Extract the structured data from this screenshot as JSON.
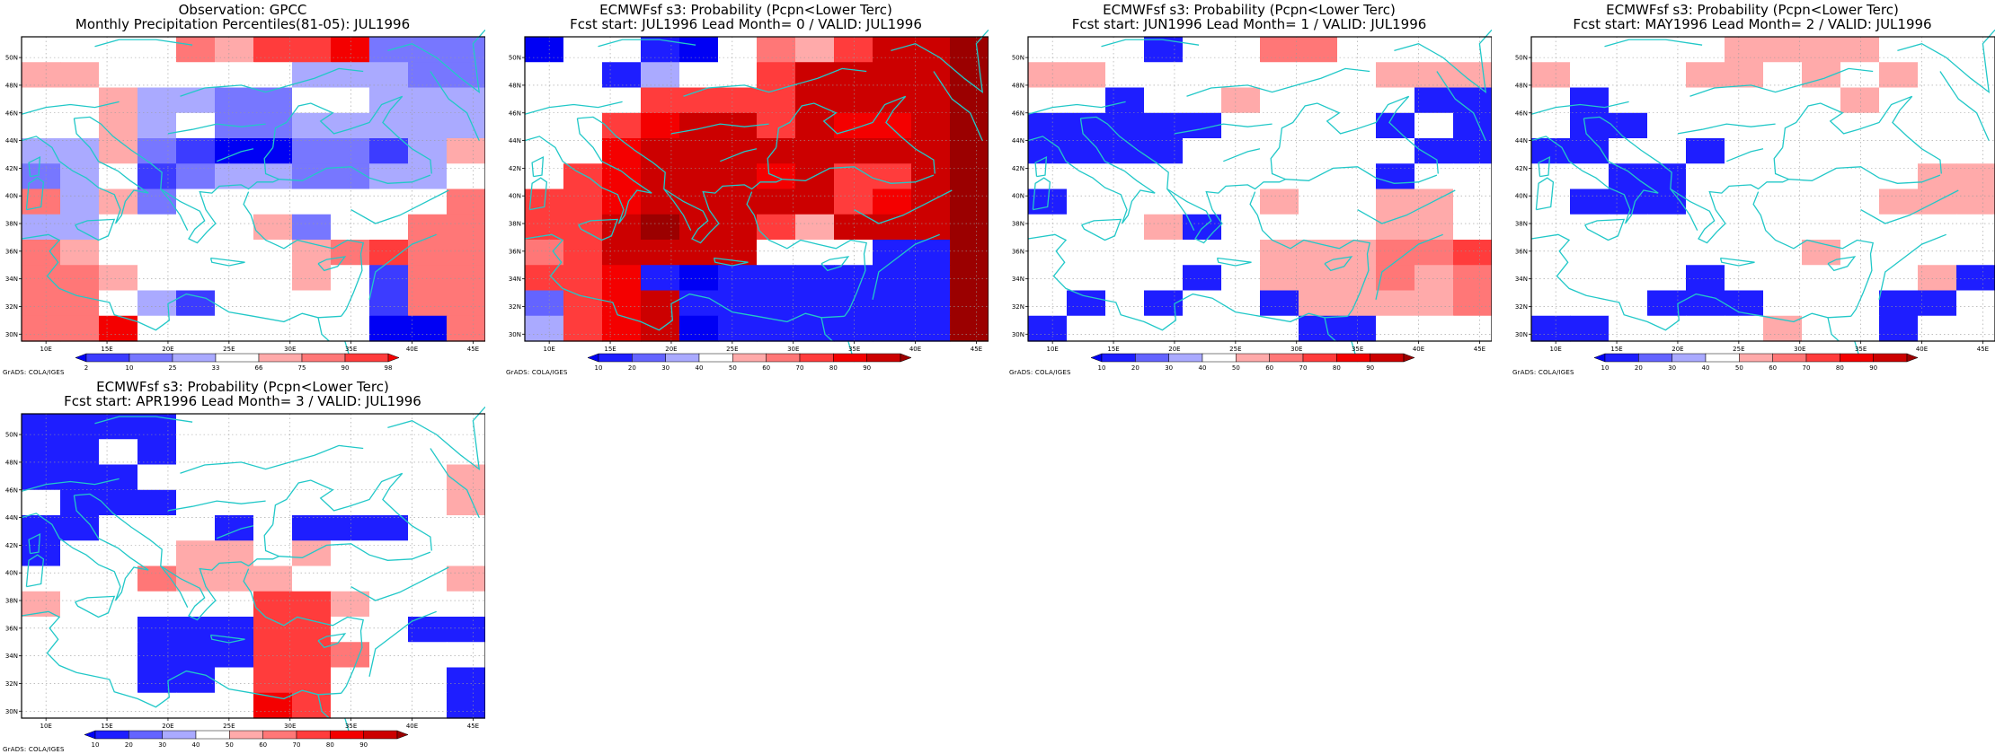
{
  "panels": [
    {
      "name": "obs",
      "title1": "Observation: GPCC",
      "title2": "Monthly Precipitation Percentiles(81-05): JUL1996",
      "credit": "GrADS: COLA/IGES",
      "legend_labels": [
        "2",
        "10",
        "25",
        "33",
        "66",
        "75",
        "90",
        "98"
      ],
      "palette": [
        "#0000f4",
        "#3c3cff",
        "#7777ff",
        "#aaaaff",
        "#ffffff",
        "#ffaaaa",
        "#ff7777",
        "#ff3c3c",
        "#f40000"
      ],
      "grid": [
        "444465778222",
        "554444433322",
        "445332244333",
        "445342233333",
        "335210022135",
        "234123322334",
        "635244444446",
        "334444524466",
        "654444456766",
        "665444454166",
        "664314444166",
        "668444444006"
      ]
    },
    {
      "name": "lead0",
      "title1": "ECMWFsf s3: Probability (Pcpn<Lower Terc)",
      "title2": "Fcst start: JUL1996  Lead Month= 0 / VALID: JUL1996",
      "credit": "GrADS: COLA/IGES",
      "legend_labels": [
        "10",
        "20",
        "30",
        "40",
        "50",
        "60",
        "70",
        "80",
        "90"
      ],
      "palette": [
        "#0000f4",
        "#1e1eff",
        "#6464ff",
        "#aaaaff",
        "#ffffff",
        "#ffaaaa",
        "#ff7777",
        "#ff3c3c",
        "#f40000",
        "#cc0000",
        "#9b0000"
      ],
      "grid": [
        "04410465799a",
        "44134479999a",
        "44477779999a",
        "44789979889a",
        "44899999999a",
        "47899989779a",
        "77899999789a",
        "779a9975999a",
        "67999944411a",
        "77810111111a",
        "27891111111a",
        "37890111111a"
      ]
    },
    {
      "name": "lead1",
      "title1": "ECMWFsf s3: Probability (Pcpn<Lower Terc)",
      "title2": "Fcst start: JUN1996  Lead Month= 1 / VALID: JUL1996",
      "credit": "GrADS: COLA/IGES",
      "legend_labels": [
        "10",
        "20",
        "30",
        "40",
        "50",
        "60",
        "70",
        "80",
        "90"
      ],
      "palette": [
        "#0000f4",
        "#1e1eff",
        "#6464ff",
        "#aaaaff",
        "#ffffff",
        "#ffaaaa",
        "#ff7777",
        "#ff3c3c",
        "#f40000",
        "#cc0000",
        "#9b0000"
      ],
      "grid": [
        "444144664444",
        "554444444555",
        "441445444411",
        "111114444141",
        "111144444411",
        "444444444144",
        "144444544554",
        "444514444554",
        "444444555667",
        "444414555656",
        "414144155556",
        "144444411444"
      ]
    },
    {
      "name": "lead2",
      "title1": "ECMWFsf s3: Probability (Pcpn<Lower Terc)",
      "title2": "Fcst start: MAY1996  Lead Month= 2 / VALID: JUL1996",
      "credit": "GrADS: COLA/IGES",
      "legend_labels": [
        "10",
        "20",
        "30",
        "40",
        "50",
        "60",
        "70",
        "80",
        "90"
      ],
      "palette": [
        "#0000f4",
        "#1e1eff",
        "#6464ff",
        "#aaaaff",
        "#ffffff",
        "#ffaaaa",
        "#ff7777",
        "#ff3c3c",
        "#f40000",
        "#cc0000",
        "#9b0000"
      ],
      "grid": [
        "444445555444",
        "544455454544",
        "414444445444",
        "411444444444",
        "114414444444",
        "441144444455",
        "411144444555",
        "444444444444",
        "444444454444",
        "444414444451",
        "444111444114",
        "114444544144"
      ]
    },
    {
      "name": "lead3",
      "title1": "ECMWFsf s3: Probability (Pcpn<Lower Terc)",
      "title2": "Fcst start: APR1996  Lead Month= 3 / VALID: JUL1996",
      "credit": "GrADS: COLA/IGES",
      "legend_labels": [
        "10",
        "20",
        "30",
        "40",
        "50",
        "60",
        "70",
        "80",
        "90"
      ],
      "palette": [
        "#0000f4",
        "#1e1eff",
        "#6464ff",
        "#aaaaff",
        "#ffffff",
        "#ffaaaa",
        "#ff7777",
        "#ff3c3c",
        "#f40000",
        "#cc0000",
        "#9b0000"
      ],
      "grid": [
        "111144444444",
        "114144444444",
        "111444444445",
        "411144444445",
        "114441411144",
        "144455454444",
        "444655544445",
        "544444775444",
        "444111774411",
        "444111776444",
        "444114774441",
        "444444874441"
      ]
    }
  ],
  "axes": {
    "lat_labels": [
      "50N",
      "48N",
      "46N",
      "44N",
      "42N",
      "40N",
      "38N",
      "36N",
      "34N",
      "32N",
      "30N"
    ],
    "lon_labels": [
      "10E",
      "15E",
      "20E",
      "25E",
      "30E",
      "35E",
      "40E",
      "45E"
    ]
  }
}
